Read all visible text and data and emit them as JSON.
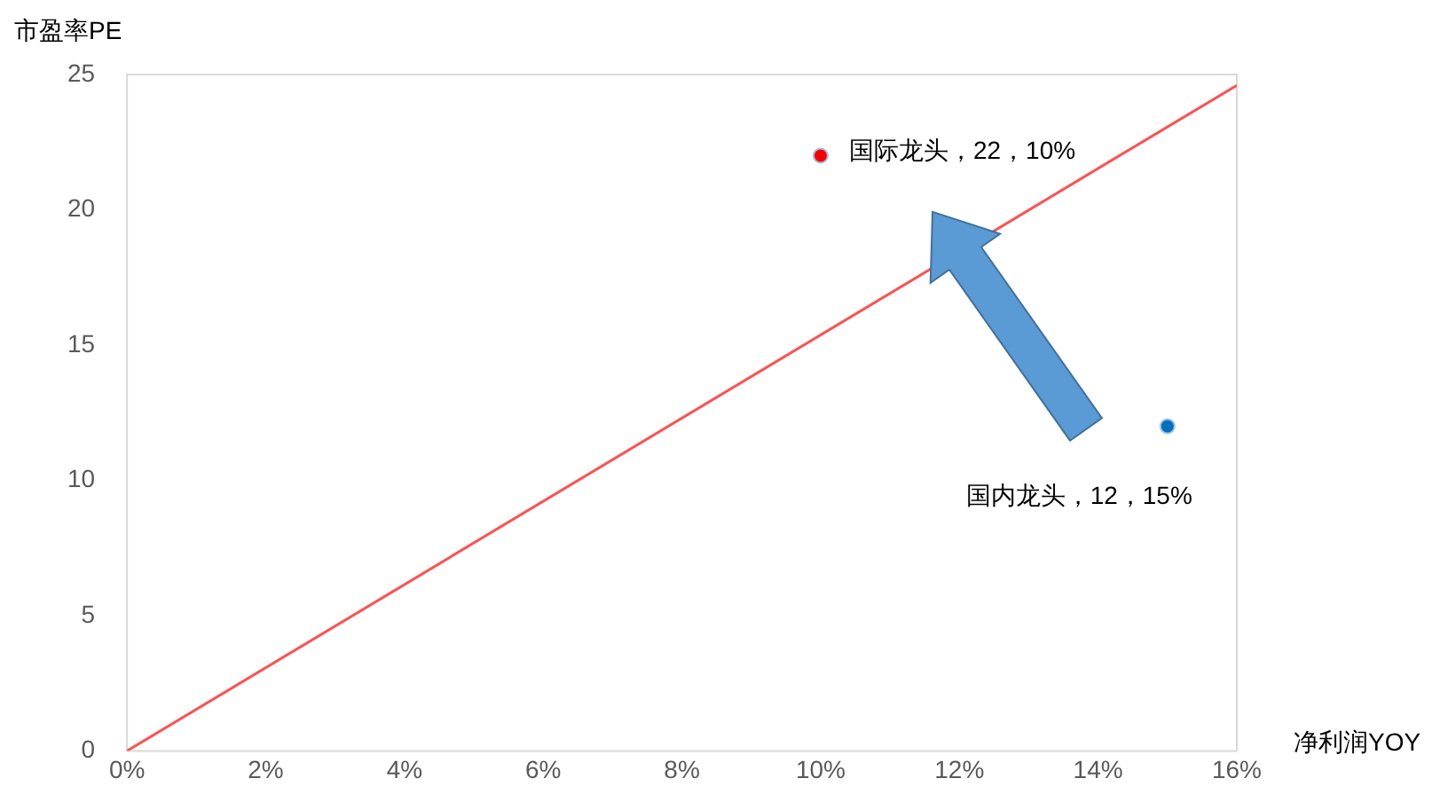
{
  "chart_data": {
    "type": "scatter",
    "xlabel": "净利润YOY",
    "ylabel": "市盈率PE",
    "x": [
      10,
      15
    ],
    "values": [
      22,
      12
    ],
    "colors": [
      "#ff0000",
      "#0070c0"
    ],
    "series": [
      {
        "type": "line",
        "marker": "none",
        "x": [
          0,
          16
        ],
        "values": [
          0,
          24.6
        ],
        "color": "#ff5050"
      }
    ],
    "xlim": [
      0,
      16
    ],
    "xticks": [
      {
        "value": 0,
        "label": "0%"
      },
      {
        "value": 2,
        "label": "2%"
      },
      {
        "value": 4,
        "label": "4%"
      },
      {
        "value": 6,
        "label": "6%"
      },
      {
        "value": 8,
        "label": "8%"
      },
      {
        "value": 10,
        "label": "10%"
      },
      {
        "value": 12,
        "label": "12%"
      },
      {
        "value": 14,
        "label": "14%"
      },
      {
        "value": 16,
        "label": "16%"
      }
    ],
    "ylim": [
      0,
      25
    ],
    "yticks": [
      0,
      5,
      10,
      15,
      20,
      25
    ],
    "grid": false,
    "legend": false,
    "marker": "circle",
    "annotations": [
      {
        "text": "国际龙头，22，10%",
        "x": 10,
        "y": 22
      },
      {
        "text": "国内龙头，12，15%",
        "x": 15,
        "y": 12
      }
    ]
  }
}
